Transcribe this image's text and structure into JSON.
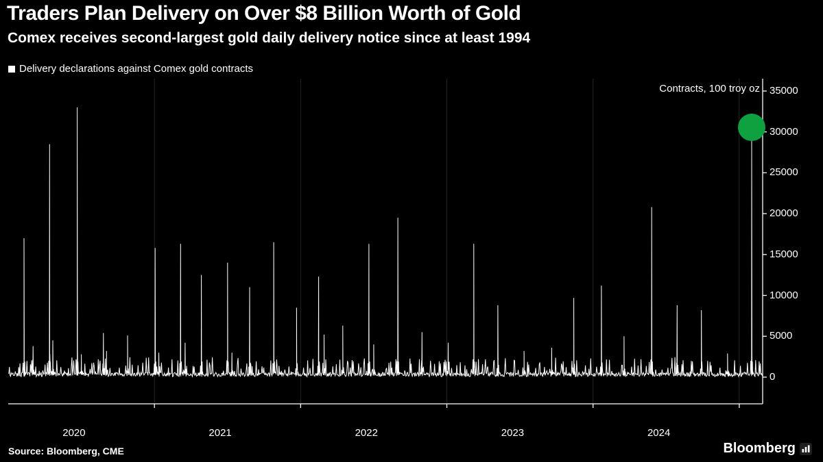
{
  "header": {
    "title": "Traders Plan Delivery on Over $8 Billion Worth of Gold",
    "subtitle": "Comex receives second-largest gold daily delivery notice since at least 1994"
  },
  "legend": {
    "label": "Delivery declarations against Comex gold contracts"
  },
  "footer": {
    "source": "Source: Bloomberg, CME",
    "brand": "Bloomberg"
  },
  "colors": {
    "background": "#000000",
    "line": "#ffffff",
    "text": "#ffffff",
    "gridline": "#262626",
    "highlight_green": "#0da23f"
  },
  "chart_data": {
    "type": "line",
    "title": "Traders Plan Delivery on Over $8 Billion Worth of Gold",
    "subtitle": "Comex receives second-largest gold daily delivery notice since at least 1994",
    "series_name": "Delivery declarations against Comex gold contracts",
    "unit_label": "Contracts, 100 troy oz",
    "xlabel": "",
    "ylabel": "Contracts, 100 troy oz",
    "ylim": [
      0,
      36500
    ],
    "yticks": [
      0,
      5000,
      10000,
      15000,
      20000,
      25000,
      30000,
      35000
    ],
    "xlim": [
      2020.0,
      2025.16
    ],
    "year_boundary_ticks": [
      2021,
      2022,
      2023,
      2024,
      2025
    ],
    "year_labels": [
      "2020",
      "2021",
      "2022",
      "2023",
      "2024"
    ],
    "grid": "vertical-year-lines",
    "legend_position": "top-left",
    "line_color": "#ffffff",
    "baseline_noise_max": 2600,
    "spikes": [
      {
        "t": 2020.108,
        "v": 17000
      },
      {
        "t": 2020.17,
        "v": 3800
      },
      {
        "t": 2020.283,
        "v": 28500
      },
      {
        "t": 2020.305,
        "v": 4500
      },
      {
        "t": 2020.472,
        "v": 33000
      },
      {
        "t": 2020.5,
        "v": 2800
      },
      {
        "t": 2020.651,
        "v": 5400
      },
      {
        "t": 2020.672,
        "v": 3200
      },
      {
        "t": 2020.816,
        "v": 5100
      },
      {
        "t": 2021.005,
        "v": 15800
      },
      {
        "t": 2021.03,
        "v": 3000
      },
      {
        "t": 2021.179,
        "v": 16300
      },
      {
        "t": 2021.21,
        "v": 4200
      },
      {
        "t": 2021.321,
        "v": 12500
      },
      {
        "t": 2021.5,
        "v": 14000
      },
      {
        "t": 2021.53,
        "v": 3000
      },
      {
        "t": 2021.651,
        "v": 11000
      },
      {
        "t": 2021.816,
        "v": 16500
      },
      {
        "t": 2021.972,
        "v": 8500
      },
      {
        "t": 2022.123,
        "v": 12300
      },
      {
        "t": 2022.16,
        "v": 5200
      },
      {
        "t": 2022.288,
        "v": 6300
      },
      {
        "t": 2022.467,
        "v": 16300
      },
      {
        "t": 2022.5,
        "v": 4000
      },
      {
        "t": 2022.665,
        "v": 19500
      },
      {
        "t": 2022.83,
        "v": 5500
      },
      {
        "t": 2023.009,
        "v": 4200
      },
      {
        "t": 2023.184,
        "v": 16300
      },
      {
        "t": 2023.349,
        "v": 8800
      },
      {
        "t": 2023.528,
        "v": 3200
      },
      {
        "t": 2023.717,
        "v": 3600
      },
      {
        "t": 2023.868,
        "v": 9700
      },
      {
        "t": 2024.057,
        "v": 11200
      },
      {
        "t": 2024.212,
        "v": 5000
      },
      {
        "t": 2024.401,
        "v": 20800
      },
      {
        "t": 2024.575,
        "v": 8800
      },
      {
        "t": 2024.741,
        "v": 8200
      },
      {
        "t": 2024.92,
        "v": 2900
      },
      {
        "t": 2025.085,
        "v": 29000
      }
    ],
    "highlight": {
      "t": 2025.085,
      "v": 29000,
      "marker": "circle",
      "marker_color": "#0da23f",
      "marker_radius": 20
    }
  }
}
